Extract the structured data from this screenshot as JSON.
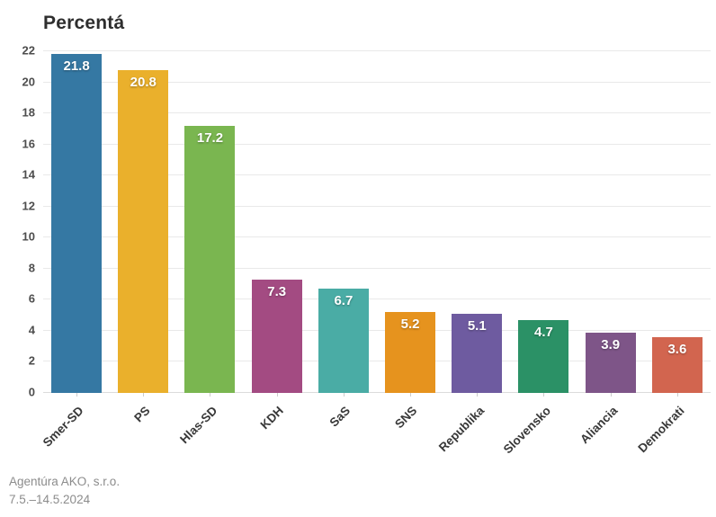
{
  "title": "Percentá",
  "footer": {
    "source": "Agentúra AKO, s.r.o.",
    "date_range": "7.5.–14.5.2024"
  },
  "chart_data": {
    "type": "bar",
    "title": "Percentá",
    "categories": [
      "Smer-SD",
      "PS",
      "Hlas-SD",
      "KDH",
      "SaS",
      "SNS",
      "Republika",
      "Slovensko",
      "Aliancia",
      "Demokrati"
    ],
    "values": [
      21.8,
      20.8,
      17.2,
      7.3,
      6.7,
      5.2,
      5.1,
      4.7,
      3.9,
      3.6
    ],
    "value_labels": [
      "21.8",
      "20.8",
      "17.2",
      "7.3",
      "6.7",
      "5.2",
      "5.1",
      "4.7",
      "3.9",
      "3.6"
    ],
    "bar_colors": [
      "#3578a3",
      "#eab02c",
      "#7ab650",
      "#a34b82",
      "#4aaca5",
      "#e6931e",
      "#6e5ba0",
      "#2b9166",
      "#7e5588",
      "#d2654f"
    ],
    "xlabel": "",
    "ylabel": "",
    "ylim": [
      0,
      22
    ],
    "ytick_step": 2,
    "yticks": [
      0,
      2,
      4,
      6,
      8,
      10,
      12,
      14,
      16,
      18,
      20,
      22
    ],
    "grid": true,
    "legend": "none",
    "xlabel_rotation_deg": -45,
    "value_label_position": "inside-top"
  },
  "colors": {
    "background": "#ffffff",
    "title_text": "#2e2e2e",
    "axis_tick_text": "#4d4d4d",
    "x_label_text": "#383838",
    "gridline": "#e9e9e9",
    "footer_text": "#8c8c8c",
    "bar_value_text": "#ffffff"
  }
}
